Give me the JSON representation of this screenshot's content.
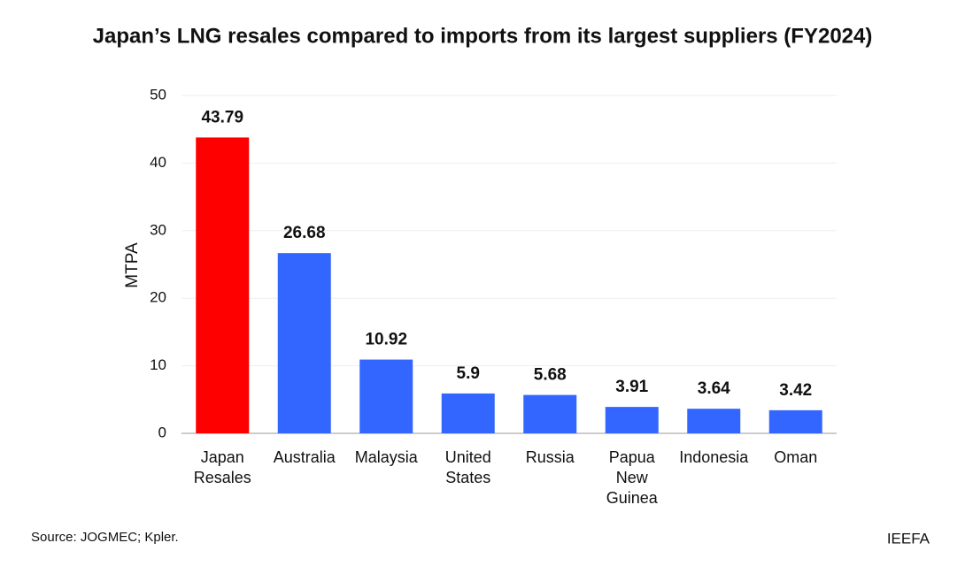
{
  "chart_data": {
    "type": "bar",
    "title": "Japan’s LNG resales compared to imports from its largest suppliers (FY2024)",
    "y_label": "MTPA",
    "categories": [
      "Japan Resales",
      "Australia",
      "Malaysia",
      "United States",
      "Russia",
      "Papua New Guinea",
      "Indonesia",
      "Oman"
    ],
    "values": [
      43.79,
      26.68,
      10.92,
      5.9,
      5.68,
      3.91,
      3.64,
      3.42
    ],
    "colors": [
      "#ff0000",
      "#3366ff",
      "#3366ff",
      "#3366ff",
      "#3366ff",
      "#3366ff",
      "#3366ff",
      "#3366ff"
    ],
    "ylim": [
      0,
      50
    ],
    "yticks": [
      0,
      10,
      20,
      30,
      40,
      50
    ],
    "grid": true,
    "source": "Source: JOGMEC; Kpler.",
    "brand": "IEEFA"
  }
}
